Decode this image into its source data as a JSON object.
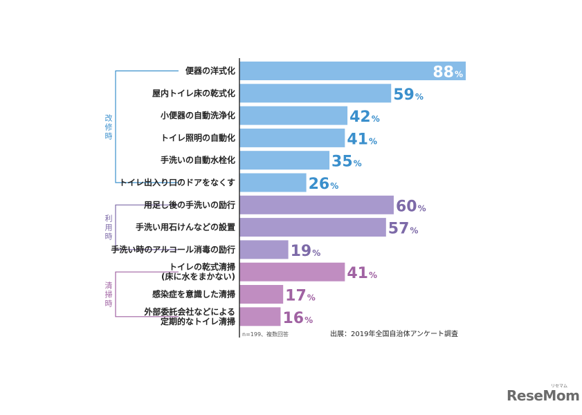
{
  "chart_data": {
    "type": "bar",
    "orientation": "horizontal",
    "xlim": [
      0,
      100
    ],
    "unit": "%",
    "groups": [
      {
        "name": "改修時",
        "color": "#3a8fcc",
        "bar_color": "#87bce8",
        "start": 0,
        "end": 5
      },
      {
        "name": "利用時",
        "color": "#7d6aa8",
        "bar_color": "#a899cd",
        "start": 6,
        "end": 8
      },
      {
        "name": "清掃時",
        "color": "#a062a2",
        "bar_color": "#c08dc1",
        "start": 9,
        "end": 11
      }
    ],
    "categories": [
      "便器の洋式化",
      "屋内トイレ床の乾式化",
      "小便器の自動洗浄化",
      "トイレ照明の自動化",
      "手洗いの自動水栓化",
      "トイレ出入り口のドアをなくす",
      "用足し後の手洗いの励行",
      "手洗い用石けんなどの設置",
      "手洗い時のアルコール消毒の励行",
      "トイレの乾式清掃\n(床に水をまかない)",
      "感染症を意識した清掃",
      "外部委託会社などによる\n定期的なトイレ清掃"
    ],
    "values": [
      88,
      59,
      42,
      41,
      35,
      26,
      60,
      57,
      19,
      41,
      17,
      16
    ]
  },
  "footnote": "n=199、複数回答",
  "source": "出展：2019年全国自治体アンケート調査",
  "logo": {
    "text": "ReseMom",
    "sub": "リセマム"
  }
}
